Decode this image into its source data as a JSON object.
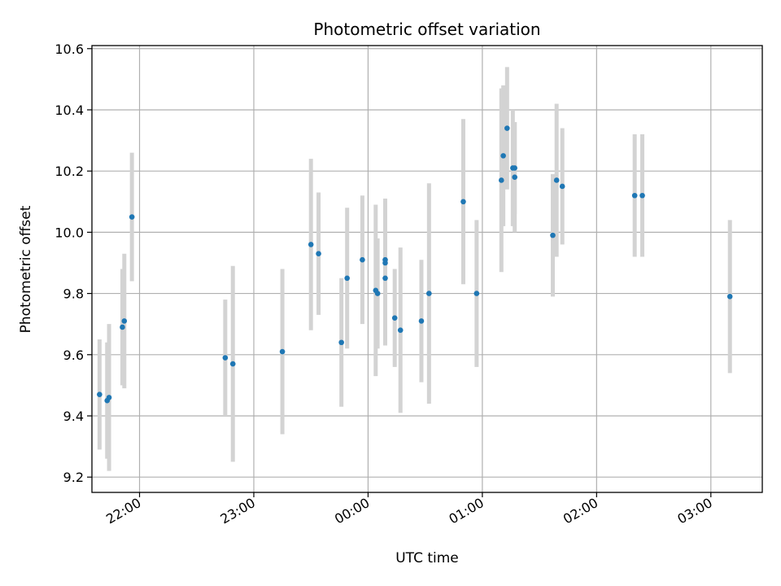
{
  "chart_data": {
    "type": "scatter",
    "title": "Photometric offset variation",
    "xlabel": "UTC time",
    "ylabel": "Photometric offset",
    "x_axis": {
      "type": "time",
      "min": "21:35",
      "max": "03:27",
      "tick_labels": [
        "22:00",
        "23:00",
        "00:00",
        "01:00",
        "02:00",
        "03:00"
      ]
    },
    "y_axis": {
      "min": 9.15,
      "max": 10.61,
      "ticks": [
        9.2,
        9.4,
        9.6,
        9.8,
        10.0,
        10.2,
        10.4,
        10.6
      ],
      "tick_labels": [
        "9.2",
        "9.4",
        "9.6",
        "9.8",
        "10.0",
        "10.2",
        "10.4",
        "10.6"
      ]
    },
    "grid": true,
    "colors": {
      "marker": "#1f77b4",
      "errorbar": "#d3d3d3"
    },
    "points": [
      {
        "t": "21:39",
        "y": 9.47,
        "err": 0.18
      },
      {
        "t": "21:43",
        "y": 9.45,
        "err": 0.19
      },
      {
        "t": "21:44",
        "y": 9.46,
        "err": 0.24
      },
      {
        "t": "21:51",
        "y": 9.69,
        "err": 0.19
      },
      {
        "t": "21:52",
        "y": 9.71,
        "err": 0.22
      },
      {
        "t": "21:56",
        "y": 10.05,
        "err": 0.21
      },
      {
        "t": "22:45",
        "y": 9.59,
        "err": 0.19
      },
      {
        "t": "22:49",
        "y": 9.57,
        "err": 0.32
      },
      {
        "t": "23:15",
        "y": 9.61,
        "err": 0.27
      },
      {
        "t": "23:30",
        "y": 9.96,
        "err": 0.28
      },
      {
        "t": "23:34",
        "y": 9.93,
        "err": 0.2
      },
      {
        "t": "23:46",
        "y": 9.64,
        "err": 0.21
      },
      {
        "t": "23:49",
        "y": 9.85,
        "err": 0.23
      },
      {
        "t": "23:57",
        "y": 9.91,
        "err": 0.21
      },
      {
        "t": "00:04",
        "y": 9.81,
        "err": 0.28
      },
      {
        "t": "00:05",
        "y": 9.8,
        "err": 0.18
      },
      {
        "t": "00:09",
        "y": 9.9,
        "err": 0.21
      },
      {
        "t": "00:09",
        "y": 9.91,
        "err": 0.2
      },
      {
        "t": "00:09",
        "y": 9.85,
        "err": 0.22
      },
      {
        "t": "00:14",
        "y": 9.72,
        "err": 0.16
      },
      {
        "t": "00:17",
        "y": 9.68,
        "err": 0.27
      },
      {
        "t": "00:28",
        "y": 9.71,
        "err": 0.2
      },
      {
        "t": "00:32",
        "y": 9.8,
        "err": 0.36
      },
      {
        "t": "00:50",
        "y": 10.1,
        "err": 0.27
      },
      {
        "t": "00:57",
        "y": 9.8,
        "err": 0.24
      },
      {
        "t": "01:10",
        "y": 10.17,
        "err": 0.3
      },
      {
        "t": "01:11",
        "y": 10.25,
        "err": 0.23
      },
      {
        "t": "01:13",
        "y": 10.34,
        "err": 0.2
      },
      {
        "t": "01:16",
        "y": 10.21,
        "err": 0.19
      },
      {
        "t": "01:17",
        "y": 10.21,
        "err": 0.15
      },
      {
        "t": "01:17",
        "y": 10.18,
        "err": 0.18
      },
      {
        "t": "01:37",
        "y": 9.99,
        "err": 0.2
      },
      {
        "t": "01:39",
        "y": 10.17,
        "err": 0.25
      },
      {
        "t": "01:42",
        "y": 10.15,
        "err": 0.19
      },
      {
        "t": "02:20",
        "y": 10.12,
        "err": 0.2
      },
      {
        "t": "02:24",
        "y": 10.12,
        "err": 0.2
      },
      {
        "t": "03:10",
        "y": 9.79,
        "err": 0.25
      }
    ]
  }
}
